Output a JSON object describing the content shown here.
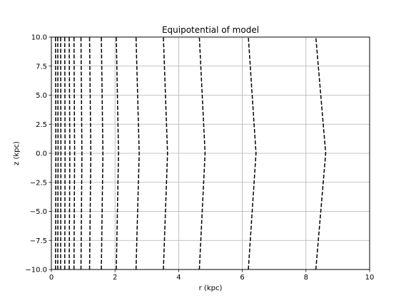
{
  "chart_data": {
    "type": "line",
    "title": "Equipotential of model",
    "xlabel": "r (kpc)",
    "ylabel": "z (kpc)",
    "xlim": [
      0,
      10
    ],
    "ylim": [
      -10,
      10
    ],
    "x_ticks": [
      0,
      2,
      4,
      6,
      8,
      10
    ],
    "x_tick_labels": [
      "0",
      "2",
      "4",
      "6",
      "8",
      "10"
    ],
    "y_ticks": [
      -10,
      -7.5,
      -5,
      -2.5,
      0,
      2.5,
      5,
      7.5,
      10
    ],
    "y_tick_labels": [
      "−10.0",
      "−7.5",
      "−5.0",
      "−2.5",
      "0.0",
      "2.5",
      "5.0",
      "7.5",
      "10.0"
    ],
    "grid": true,
    "line_style": "dashed",
    "line_color": "#000000",
    "contours": [
      {
        "z": [
          -10,
          0,
          10
        ],
        "r": [
          0.13,
          0.14,
          0.13
        ]
      },
      {
        "z": [
          -10,
          0,
          10
        ],
        "r": [
          0.2,
          0.21,
          0.2
        ]
      },
      {
        "z": [
          -10,
          0,
          10
        ],
        "r": [
          0.29,
          0.3,
          0.29
        ]
      },
      {
        "z": [
          -10,
          0,
          10
        ],
        "r": [
          0.42,
          0.43,
          0.42
        ]
      },
      {
        "z": [
          -10,
          0,
          10
        ],
        "r": [
          0.56,
          0.58,
          0.56
        ]
      },
      {
        "z": [
          -10,
          0,
          10
        ],
        "r": [
          0.71,
          0.73,
          0.71
        ]
      },
      {
        "z": [
          -10,
          0,
          10
        ],
        "r": [
          0.93,
          0.96,
          0.93
        ]
      },
      {
        "z": [
          -10,
          0,
          10
        ],
        "r": [
          1.2,
          1.24,
          1.2
        ]
      },
      {
        "z": [
          -10,
          0,
          10
        ],
        "r": [
          1.57,
          1.62,
          1.57
        ]
      },
      {
        "z": [
          -10,
          0,
          10
        ],
        "r": [
          2.04,
          2.11,
          2.04
        ]
      },
      {
        "z": [
          -10,
          0,
          10
        ],
        "r": [
          2.66,
          2.76,
          2.66
        ]
      },
      {
        "z": [
          -10,
          0,
          10
        ],
        "r": [
          3.52,
          3.65,
          3.52
        ]
      },
      {
        "z": [
          -10,
          0,
          10
        ],
        "r": [
          4.65,
          4.83,
          4.65
        ]
      },
      {
        "z": [
          -10,
          0,
          10
        ],
        "r": [
          6.19,
          6.43,
          6.19
        ]
      },
      {
        "z": [
          -10,
          0,
          10
        ],
        "r": [
          8.31,
          8.62,
          8.31
        ]
      }
    ]
  }
}
